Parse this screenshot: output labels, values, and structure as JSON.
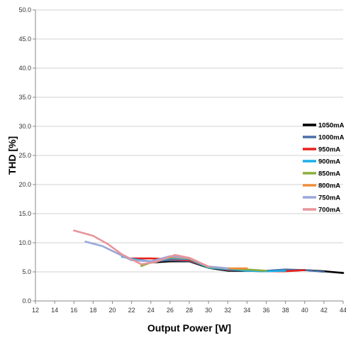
{
  "chart_data": {
    "type": "line",
    "title": "",
    "xlabel": "Output Power [W]",
    "ylabel": "THD [%]",
    "xlim": [
      12,
      44
    ],
    "ylim": [
      0,
      50
    ],
    "x_ticks": [
      "12",
      "14",
      "16",
      "18",
      "20",
      "22",
      "24",
      "26",
      "28",
      "30",
      "32",
      "34",
      "36",
      "38",
      "40",
      "42",
      "44"
    ],
    "y_ticks": [
      "0.0",
      "5.0",
      "10.0",
      "15.0",
      "20.0",
      "25.0",
      "30.0",
      "35.0",
      "40.0",
      "45.0",
      "50.0"
    ],
    "grid": "horizontal",
    "legend_position": "right",
    "series": [
      {
        "name": "1050mA",
        "color": "#000000",
        "points": [
          [
            24,
            6.6
          ],
          [
            26,
            6.8
          ],
          [
            28,
            6.8
          ],
          [
            30,
            5.7
          ],
          [
            32,
            5.2
          ],
          [
            34,
            5.2
          ],
          [
            36,
            5.1
          ],
          [
            38,
            5.2
          ],
          [
            40,
            5.3
          ],
          [
            42,
            5.1
          ],
          [
            44,
            4.8
          ]
        ]
      },
      {
        "name": "1000mA",
        "color": "#4a6fa5",
        "points": [
          [
            24,
            6.8
          ],
          [
            26,
            7.0
          ],
          [
            28,
            6.9
          ],
          [
            30,
            5.8
          ],
          [
            32,
            5.3
          ],
          [
            34,
            5.3
          ],
          [
            36,
            5.2
          ],
          [
            38,
            5.4
          ],
          [
            40,
            5.3
          ],
          [
            42,
            5.0
          ]
        ]
      },
      {
        "name": "950mA",
        "color": "#e8201a",
        "points": [
          [
            22,
            7.3
          ],
          [
            24,
            7.3
          ],
          [
            26,
            7.2
          ],
          [
            28,
            7.0
          ],
          [
            30,
            5.8
          ],
          [
            32,
            5.4
          ],
          [
            34,
            5.3
          ],
          [
            36,
            5.1
          ],
          [
            38,
            5.1
          ],
          [
            40,
            5.3
          ]
        ]
      },
      {
        "name": "900mA",
        "color": "#1ab0e8",
        "points": [
          [
            21,
            7.6
          ],
          [
            22.5,
            7.1
          ],
          [
            24,
            6.8
          ],
          [
            26,
            7.3
          ],
          [
            28,
            7.2
          ],
          [
            30,
            5.7
          ],
          [
            32,
            5.5
          ],
          [
            34,
            5.2
          ],
          [
            36,
            5.1
          ],
          [
            38,
            5.2
          ]
        ]
      },
      {
        "name": "850mA",
        "color": "#8cad3c",
        "points": [
          [
            23,
            6.0
          ],
          [
            24,
            6.6
          ],
          [
            26,
            7.5
          ],
          [
            28,
            7.4
          ],
          [
            30,
            5.8
          ],
          [
            32,
            5.6
          ],
          [
            34,
            5.4
          ],
          [
            36,
            5.2
          ]
        ]
      },
      {
        "name": "800mA",
        "color": "#f08c3a",
        "points": [
          [
            20,
            8.6
          ],
          [
            22,
            7.0
          ],
          [
            24,
            6.8
          ],
          [
            26,
            7.6
          ],
          [
            28,
            7.3
          ],
          [
            30,
            5.9
          ],
          [
            32,
            5.6
          ],
          [
            34,
            5.6
          ]
        ]
      },
      {
        "name": "750mA",
        "color": "#9aa8dc",
        "points": [
          [
            17.2,
            10.2
          ],
          [
            19,
            9.4
          ],
          [
            20.5,
            8.2
          ],
          [
            22,
            7.0
          ],
          [
            24,
            6.8
          ],
          [
            26,
            7.7
          ],
          [
            28,
            7.4
          ],
          [
            30,
            5.9
          ],
          [
            32,
            5.6
          ]
        ]
      },
      {
        "name": "700mA",
        "color": "#e8959a",
        "points": [
          [
            16,
            12.1
          ],
          [
            18,
            11.2
          ],
          [
            19.5,
            9.8
          ],
          [
            21,
            8.0
          ],
          [
            23,
            6.3
          ],
          [
            24.5,
            6.7
          ],
          [
            26.5,
            7.9
          ],
          [
            28,
            7.4
          ],
          [
            30,
            5.9
          ]
        ]
      }
    ]
  }
}
